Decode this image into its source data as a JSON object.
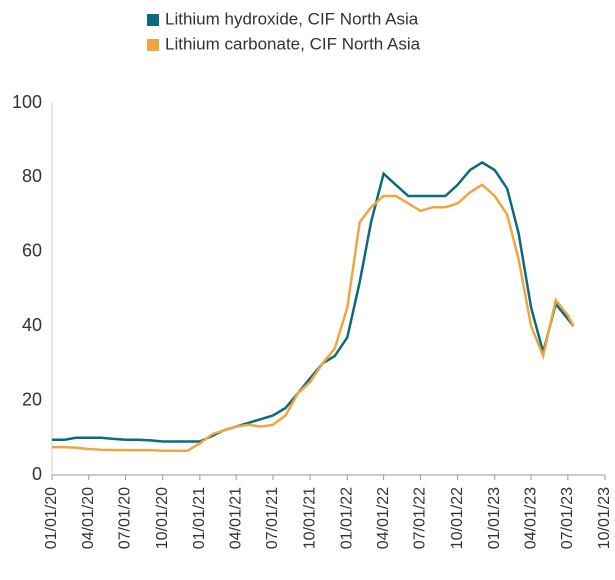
{
  "chart_data": {
    "type": "line",
    "x": [
      "01/01/20",
      "02/01/20",
      "03/01/20",
      "04/01/20",
      "05/01/20",
      "06/01/20",
      "07/01/20",
      "08/01/20",
      "09/01/20",
      "10/01/20",
      "11/01/20",
      "12/01/20",
      "01/01/21",
      "02/01/21",
      "03/01/21",
      "04/01/21",
      "05/01/21",
      "06/01/21",
      "07/01/21",
      "08/01/21",
      "09/01/21",
      "10/01/21",
      "11/01/21",
      "12/01/21",
      "01/01/22",
      "02/01/22",
      "03/01/22",
      "04/01/22",
      "05/01/22",
      "06/01/22",
      "07/01/22",
      "08/01/22",
      "09/01/22",
      "10/01/22",
      "11/01/22",
      "12/01/22",
      "01/01/23",
      "02/01/23",
      "03/01/23",
      "04/01/23",
      "05/01/23",
      "06/01/23",
      "07/01/23",
      "07/15/23"
    ],
    "series": [
      {
        "name": "Lithium hydroxide, CIF North Asia",
        "color": "#0b6a80",
        "values": [
          9.5,
          9.5,
          10,
          10,
          10,
          9.7,
          9.5,
          9.5,
          9.3,
          9,
          9,
          9,
          9,
          10.5,
          12,
          13,
          14,
          15,
          16,
          18,
          22,
          26,
          30,
          32,
          37,
          52,
          68,
          81,
          78,
          75,
          75,
          75,
          75,
          78,
          82,
          84,
          82,
          77,
          65,
          45,
          33,
          46,
          42,
          40
        ]
      },
      {
        "name": "Lithium carbonate, CIF North Asia",
        "color": "#f0a640",
        "values": [
          7.5,
          7.5,
          7.3,
          7,
          6.8,
          6.7,
          6.7,
          6.7,
          6.7,
          6.5,
          6.5,
          6.5,
          8.5,
          11,
          12,
          13,
          13.5,
          13,
          13.5,
          16,
          22,
          25,
          30,
          34,
          45,
          68,
          72,
          75,
          75,
          73,
          71,
          72,
          72,
          73,
          76,
          78,
          75,
          70,
          58,
          40,
          32,
          47,
          43,
          40
        ]
      }
    ],
    "xlim": [
      "01/01/20",
      "10/01/23"
    ],
    "xticks": [
      "01/01/20",
      "04/01/20",
      "07/01/20",
      "10/01/20",
      "01/01/21",
      "04/01/21",
      "07/01/21",
      "10/01/21",
      "01/01/22",
      "04/01/22",
      "07/01/22",
      "10/01/22",
      "01/01/23",
      "04/01/23",
      "07/01/23",
      "10/01/23"
    ],
    "ylim": [
      0,
      100
    ],
    "yticks": [
      0,
      20,
      40,
      60,
      80,
      100
    ],
    "grid": false,
    "legend": "top"
  }
}
